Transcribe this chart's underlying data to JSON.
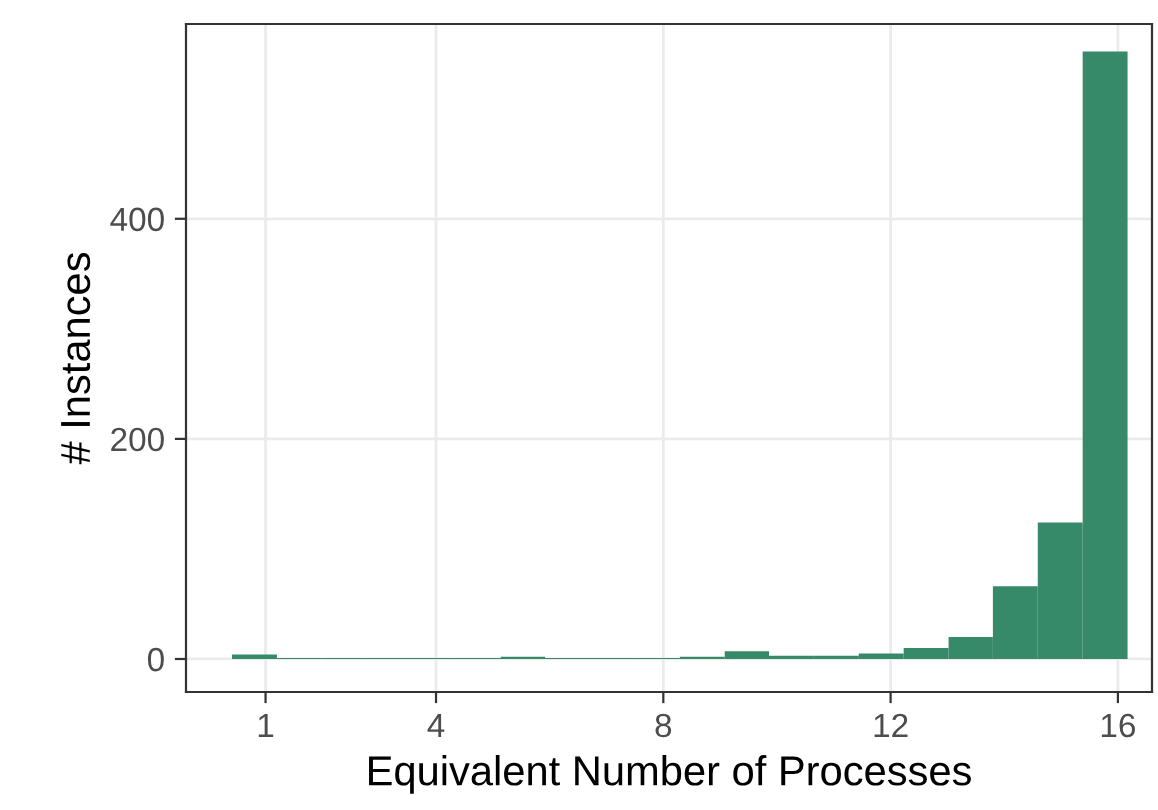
{
  "chart_data": {
    "type": "histogram",
    "xlabel": "Equivalent Number of Processes",
    "ylabel": "# Instances",
    "bins": [
      0.41,
      1.2,
      1.99,
      2.77,
      3.56,
      4.35,
      5.14,
      5.92,
      6.71,
      7.5,
      8.29,
      9.08,
      9.86,
      10.65,
      11.44,
      12.23,
      13.02,
      13.8,
      14.59,
      15.38,
      16.17
    ],
    "values": [
      4,
      1,
      1,
      1,
      1,
      1,
      2,
      1,
      1,
      1,
      2,
      7,
      3,
      3,
      5,
      10,
      20,
      66,
      124,
      552
    ],
    "color": "#368a69",
    "xlim": [
      -0.4,
      16.6
    ],
    "xticks": [
      1,
      4,
      8,
      12,
      16
    ],
    "ylim": [
      -30,
      577
    ],
    "yticks": [
      0,
      200,
      400
    ],
    "grid": true,
    "legend": false
  }
}
